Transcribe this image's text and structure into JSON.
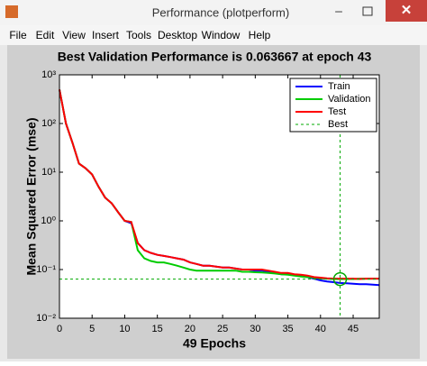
{
  "window": {
    "title": "Performance (plotperform)",
    "menu": [
      "File",
      "Edit",
      "View",
      "Insert",
      "Tools",
      "Desktop",
      "Window",
      "Help"
    ]
  },
  "chart_data": {
    "type": "line",
    "title": "Best Validation Performance is 0.063667 at epoch 43",
    "x_label": "49 Epochs",
    "y_label": "Mean Squared Error  (mse)",
    "log_y": true,
    "legend": "top-right",
    "x": [
      0,
      1,
      2,
      3,
      4,
      5,
      6,
      7,
      8,
      9,
      10,
      11,
      12,
      13,
      14,
      15,
      16,
      17,
      18,
      19,
      20,
      21,
      22,
      23,
      24,
      25,
      26,
      27,
      28,
      29,
      30,
      31,
      32,
      33,
      34,
      35,
      36,
      37,
      38,
      39,
      40,
      41,
      42,
      43,
      44,
      45,
      46,
      47,
      48,
      49
    ],
    "xlim": [
      0,
      49
    ],
    "xticks": [
      0,
      5,
      10,
      15,
      20,
      25,
      30,
      35,
      40,
      45
    ],
    "ylim": [
      0.01,
      1000
    ],
    "yticks": [
      {
        "value": 0.01,
        "label": "10⁻²"
      },
      {
        "value": 0.1,
        "label": "10⁻¹"
      },
      {
        "value": 1,
        "label": "10⁰"
      },
      {
        "value": 10,
        "label": "10¹"
      },
      {
        "value": 100,
        "label": "10²"
      },
      {
        "value": 1000,
        "label": "10³"
      }
    ],
    "series": [
      {
        "name": "Train",
        "color": "#0000ff",
        "values": [
          500,
          100,
          40,
          15,
          12,
          9,
          5,
          3,
          2.3,
          1.5,
          1.0,
          0.9,
          0.35,
          0.25,
          0.22,
          0.2,
          0.19,
          0.18,
          0.17,
          0.16,
          0.14,
          0.13,
          0.12,
          0.12,
          0.115,
          0.11,
          0.11,
          0.105,
          0.1,
          0.1,
          0.095,
          0.095,
          0.09,
          0.085,
          0.08,
          0.08,
          0.078,
          0.075,
          0.07,
          0.065,
          0.06,
          0.057,
          0.055,
          0.053,
          0.052,
          0.051,
          0.05,
          0.05,
          0.049,
          0.048
        ]
      },
      {
        "name": "Validation",
        "color": "#00cc00",
        "values": [
          500,
          100,
          40,
          15,
          12,
          9,
          5,
          3,
          2.3,
          1.5,
          1.0,
          0.95,
          0.25,
          0.17,
          0.15,
          0.14,
          0.14,
          0.13,
          0.12,
          0.11,
          0.1,
          0.095,
          0.095,
          0.095,
          0.095,
          0.095,
          0.095,
          0.095,
          0.09,
          0.09,
          0.088,
          0.087,
          0.085,
          0.083,
          0.08,
          0.078,
          0.075,
          0.072,
          0.07,
          0.068,
          0.066,
          0.065,
          0.064,
          0.063667,
          0.064,
          0.064,
          0.065,
          0.065,
          0.065,
          0.065
        ]
      },
      {
        "name": "Test",
        "color": "#ff0000",
        "values": [
          500,
          100,
          40,
          15,
          12,
          9,
          5,
          3,
          2.3,
          1.5,
          1.0,
          0.95,
          0.35,
          0.25,
          0.22,
          0.2,
          0.19,
          0.18,
          0.17,
          0.16,
          0.14,
          0.13,
          0.12,
          0.12,
          0.115,
          0.11,
          0.11,
          0.105,
          0.1,
          0.1,
          0.1,
          0.1,
          0.095,
          0.09,
          0.085,
          0.085,
          0.08,
          0.078,
          0.075,
          0.07,
          0.068,
          0.066,
          0.065,
          0.065,
          0.065,
          0.065,
          0.064,
          0.065,
          0.065,
          0.065
        ]
      }
    ],
    "best": {
      "name": "Best",
      "color": "#00aa00",
      "epoch": 43,
      "value": 0.063667
    }
  }
}
